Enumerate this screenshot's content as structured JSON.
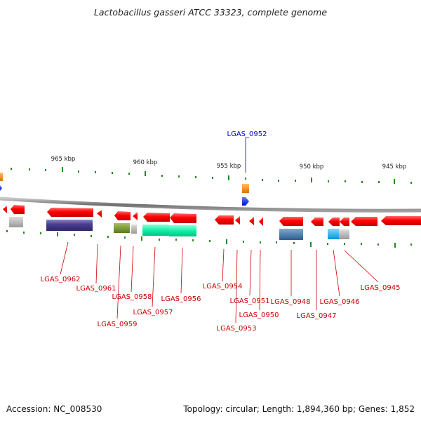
{
  "title": "Lactobacillus gasseri ATCC 33323, complete genome",
  "accession_text": "Accession: NC_008530",
  "topology_text": "Topology: circular; Length: 1,894,360 bp; Genes: 1,852",
  "colors": {
    "gene_arrow": "#ff0000",
    "gene_label": "#cc0000",
    "highlight_label": "#0000cc",
    "highlight_arrow": "#0033ff",
    "backbone": "#888888",
    "tick": "#228b22"
  },
  "scale_labels": [
    "965 kbp",
    "960 kbp",
    "955 kbp",
    "950 kbp",
    "945 kbp"
  ],
  "genes": [
    {
      "name": "LGAS_0945"
    },
    {
      "name": "LGAS_0946"
    },
    {
      "name": "LGAS_0947"
    },
    {
      "name": "LGAS_0948"
    },
    {
      "name": "LGAS_0950"
    },
    {
      "name": "LGAS_0951"
    },
    {
      "name": "LGAS_0953"
    },
    {
      "name": "LGAS_0954"
    },
    {
      "name": "LGAS_0956"
    },
    {
      "name": "LGAS_0957"
    },
    {
      "name": "LGAS_0958"
    },
    {
      "name": "LGAS_0959"
    },
    {
      "name": "LGAS_0961"
    },
    {
      "name": "LGAS_0962"
    }
  ],
  "highlight_gene": "LGAS_0952"
}
